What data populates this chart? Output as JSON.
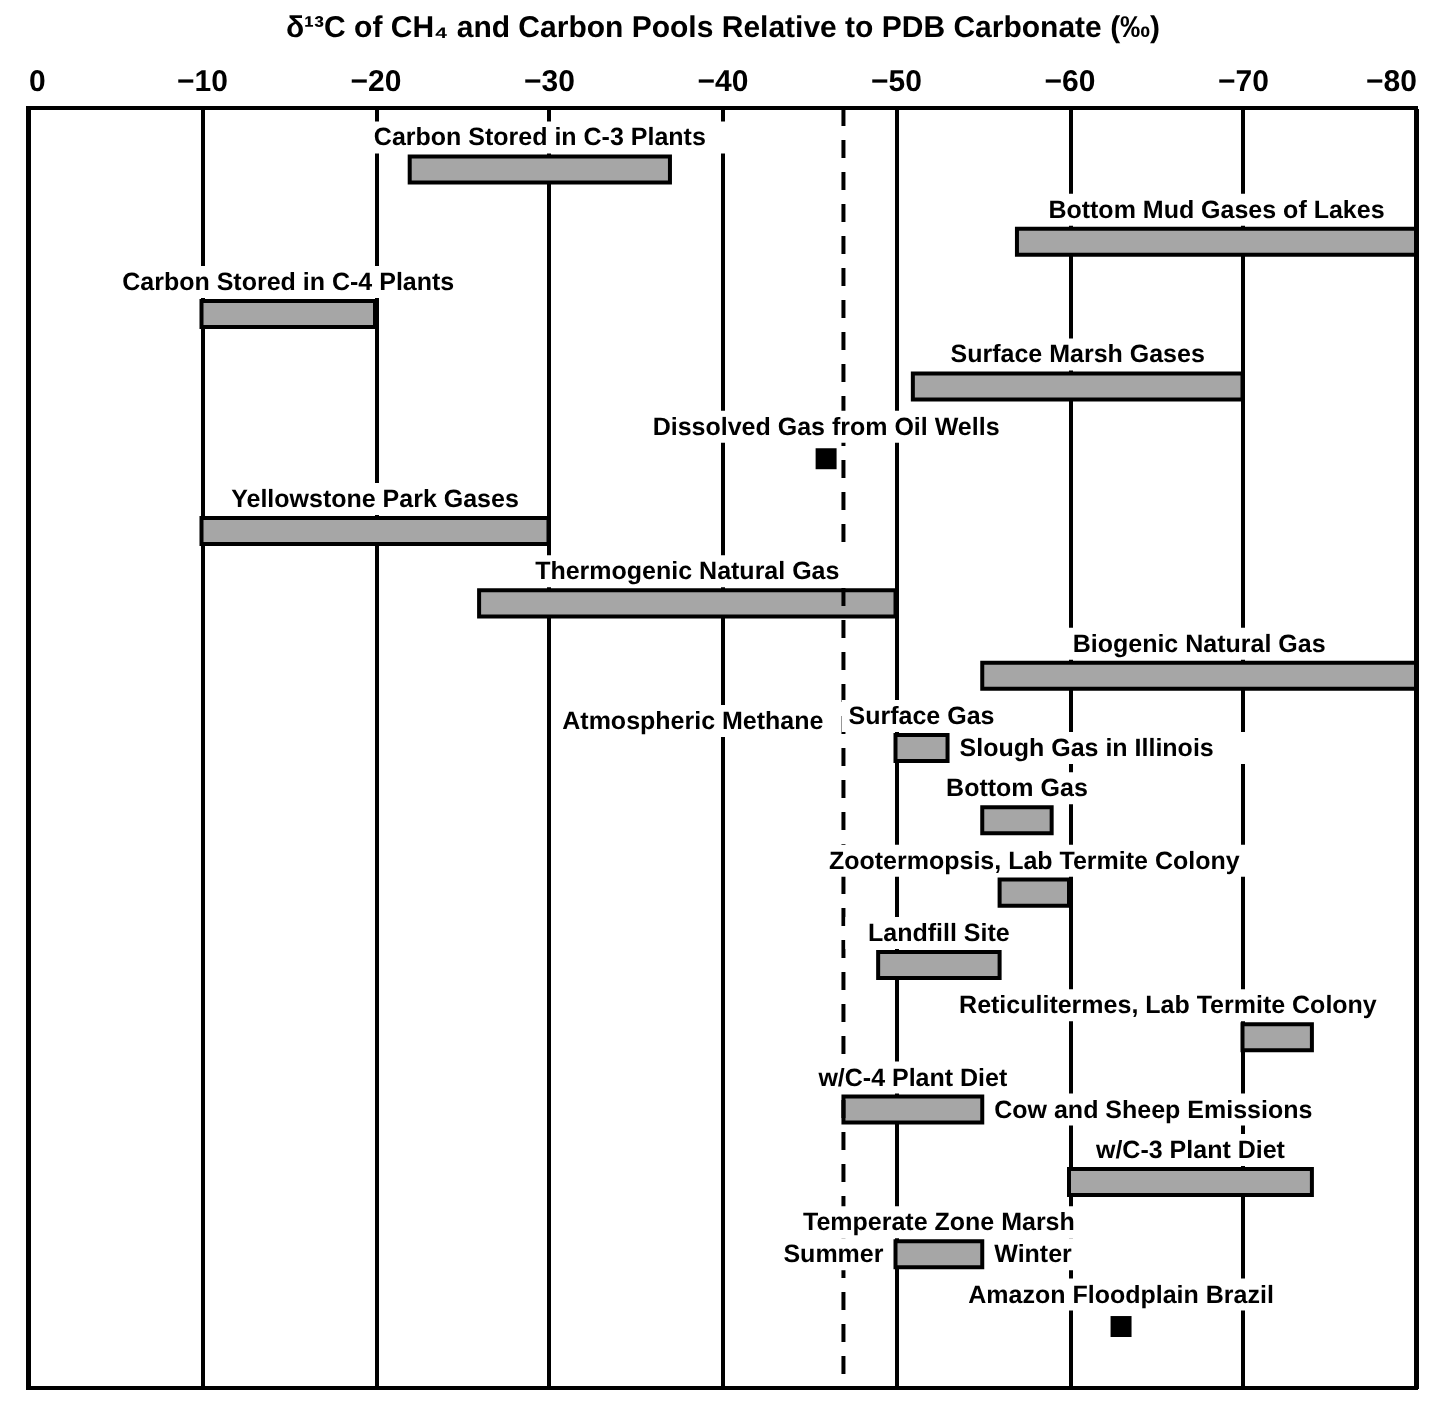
{
  "chart_data": {
    "type": "bar",
    "orientation": "horizontal",
    "xlabel": "δ¹³C of CH₄ and Carbon Pools Relative to PDB Carbonate (‰)",
    "categories": [
      "Carbon Stored in C-3 Plants",
      "Bottom Mud Gases of Lakes",
      "Carbon Stored in C-4 Plants",
      "Surface Marsh Gases",
      "Dissolved Gas from Oil Wells",
      "Yellowstone Park Gases",
      "Thermogenic Natural Gas",
      "Biogenic Natural Gas",
      "Surface Gas",
      "Bottom Gas",
      "Zootermopsis, Lab Termite Colony",
      "Landfill Site",
      "Reticulitermes, Lab Termite Colony",
      "w/C-4 Plant Diet",
      "w/C-3 Plant Diet",
      "Temperate Zone Marsh",
      "Amazon Floodplain Brazil"
    ],
    "series": [
      {
        "color": "#a6a6a6",
        "base": [
          -22,
          -57,
          -10,
          -51,
          null,
          -10,
          -26,
          -55,
          -50,
          -55,
          -56,
          -49,
          -70,
          -47,
          -60,
          -50,
          null
        ],
        "values": [
          -15,
          -23,
          -10,
          -19,
          null,
          -20,
          -24,
          -25,
          -3,
          -4,
          -4,
          -7,
          -4,
          -8,
          -14,
          -5,
          null
        ]
      },
      {
        "type": "scatter",
        "color": "#000000",
        "values": [
          null,
          null,
          null,
          null,
          -46,
          null,
          null,
          null,
          null,
          null,
          null,
          null,
          null,
          null,
          null,
          null,
          -63
        ]
      }
    ],
    "marker": "square",
    "xlim": [
      0,
      -80
    ],
    "xticks": [
      0,
      -10,
      -20,
      -30,
      -40,
      -50,
      -60,
      -70,
      -80
    ],
    "grid": "x",
    "tick_labels": "x",
    "ref_lines": [
      {
        "axis": "x",
        "value": -47,
        "label": "Atmospheric Methane",
        "line_style": "dashed",
        "color": "#000000"
      }
    ],
    "annotations": [
      {
        "text": "Slough Gas in Illinois",
        "x": -53,
        "y": "Surface Gas"
      },
      {
        "text": "Cow and Sheep Emissions",
        "x": -55,
        "y": "w/C-4 Plant Diet"
      },
      {
        "text": "Summer",
        "x": -50,
        "y": "Temperate Zone Marsh"
      },
      {
        "text": "Winter",
        "x": -55,
        "y": "Temperate Zone Marsh"
      }
    ]
  }
}
